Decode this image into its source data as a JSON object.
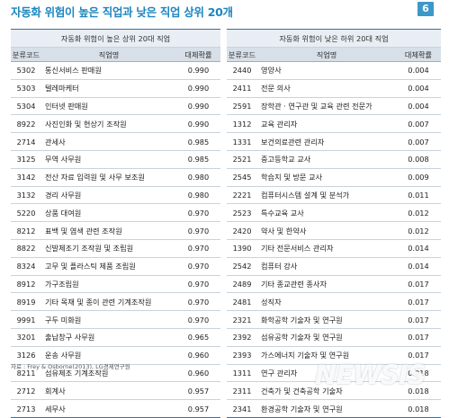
{
  "title": "자동화 위험이 높은 직업과 낮은 직업 상위 20개",
  "page_number": "6",
  "left_table": {
    "caption": "자동화 위험이 높은 상위 20대 직업",
    "headers": [
      "분류코드",
      "직업명",
      "대체확률"
    ],
    "rows": [
      [
        "5302",
        "통신서비스 판매원",
        "0.990"
      ],
      [
        "5303",
        "텔레마케터",
        "0.990"
      ],
      [
        "5304",
        "인터넷 판매원",
        "0.990"
      ],
      [
        "8922",
        "사진인화 및 현상기 조작원",
        "0.990"
      ],
      [
        "2714",
        "관세사",
        "0.985"
      ],
      [
        "3125",
        "무역 사무원",
        "0.985"
      ],
      [
        "3142",
        "전산 자료 입력원 및 사무 보조원",
        "0.980"
      ],
      [
        "3132",
        "경리 사무원",
        "0.980"
      ],
      [
        "5220",
        "상품 대여원",
        "0.970"
      ],
      [
        "8212",
        "표백 및 염색 관련 조작원",
        "0.970"
      ],
      [
        "8822",
        "신발제조기 조작원 및 조립원",
        "0.970"
      ],
      [
        "8324",
        "고무 및 플라스틱 제품 조립원",
        "0.970"
      ],
      [
        "8912",
        "가구조립원",
        "0.970"
      ],
      [
        "8919",
        "기타 목재 및 종이 관련 기계조작원",
        "0.970"
      ],
      [
        "9991",
        "구두 미화원",
        "0.970"
      ],
      [
        "3201",
        "출납창구 사무원",
        "0.965"
      ],
      [
        "3126",
        "운송 사무원",
        "0.960"
      ],
      [
        "8211",
        "섬유제조 기계조작원",
        "0.960"
      ],
      [
        "2712",
        "회계사",
        "0.957"
      ],
      [
        "2713",
        "세무사",
        "0.957"
      ]
    ]
  },
  "right_table": {
    "caption": "자동화 위험이 낮은 하위 20대 직업",
    "headers": [
      "분류코드",
      "직업명",
      "대체확률"
    ],
    "rows": [
      [
        "2440",
        "영양사",
        "0.004"
      ],
      [
        "2411",
        "전문 의사",
        "0.004"
      ],
      [
        "2591",
        "장학관 · 연구관 및 교육 관련 전문가",
        "0.004"
      ],
      [
        "1312",
        "교육 관리자",
        "0.007"
      ],
      [
        "1331",
        "보건의료관련 관리자",
        "0.007"
      ],
      [
        "2521",
        "중고등학교 교사",
        "0.008"
      ],
      [
        "2545",
        "학습지 및 방문 교사",
        "0.009"
      ],
      [
        "2221",
        "컴퓨터시스템 설계 및 분석가",
        "0.011"
      ],
      [
        "2523",
        "특수교육 교사",
        "0.012"
      ],
      [
        "2420",
        "약사 및 한약사",
        "0.012"
      ],
      [
        "1390",
        "기타 전문서비스 관리자",
        "0.014"
      ],
      [
        "2542",
        "컴퓨터 강사",
        "0.014"
      ],
      [
        "2489",
        "기타 종교관련 종사자",
        "0.017"
      ],
      [
        "2481",
        "성직자",
        "0.017"
      ],
      [
        "2321",
        "화학공학 기술자 및 연구원",
        "0.017"
      ],
      [
        "2392",
        "섬유공학 기술자 및 연구원",
        "0.017"
      ],
      [
        "2393",
        "가스에너지 기술자 및 연구원",
        "0.017"
      ],
      [
        "1311",
        "연구 관리자",
        "0.018"
      ],
      [
        "2311",
        "건축가 및 건축공학 기술자",
        "0.018"
      ],
      [
        "2341",
        "환경공학 기술자 및 연구원",
        "0.018"
      ]
    ]
  },
  "source": "자료 : Frey & Osborne(2013), LG경제연구원",
  "watermark": "NEWSIS"
}
